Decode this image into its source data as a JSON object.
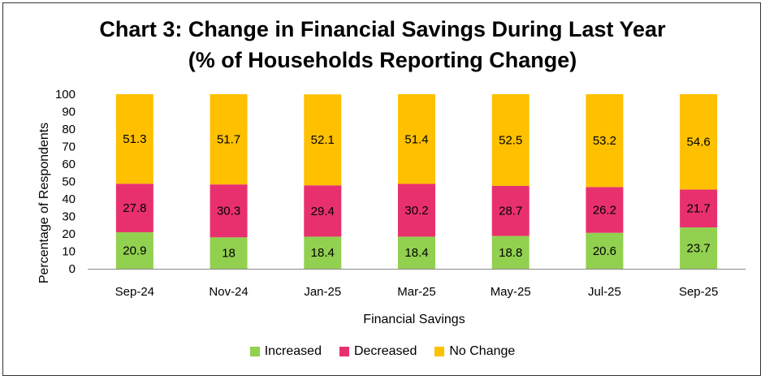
{
  "chart_data": {
    "type": "bar",
    "stacked": true,
    "title_line1": "Chart 3: Change in Financial Savings During Last Year",
    "title_line2": "(% of Households Reporting Change)",
    "xlabel": "Financial Savings",
    "ylabel": "Percentage of Respondents",
    "ylim": [
      0,
      100
    ],
    "yticks": [
      "0",
      "10",
      "20",
      "30",
      "40",
      "50",
      "60",
      "70",
      "80",
      "90",
      "100"
    ],
    "categories": [
      "Sep-24",
      "Nov-24",
      "Jan-25",
      "Mar-25",
      "May-25",
      "Jul-25",
      "Sep-25"
    ],
    "series": [
      {
        "name": "Increased",
        "color": "#92D050",
        "values": [
          20.9,
          18,
          18.4,
          18.4,
          18.8,
          20.6,
          23.7
        ],
        "labels": [
          "20.9",
          "18",
          "18.4",
          "18.4",
          "18.8",
          "20.6",
          "23.7"
        ]
      },
      {
        "name": "Decreased",
        "color": "#E8306F",
        "values": [
          27.8,
          30.3,
          29.4,
          30.2,
          28.7,
          26.2,
          21.7
        ],
        "labels": [
          "27.8",
          "30.3",
          "29.4",
          "30.2",
          "28.7",
          "26.2",
          "21.7"
        ]
      },
      {
        "name": "No Change",
        "color": "#FFC000",
        "values": [
          51.3,
          51.7,
          52.1,
          51.4,
          52.5,
          53.2,
          54.6
        ],
        "labels": [
          "51.3",
          "51.7",
          "52.1",
          "51.4",
          "52.5",
          "53.2",
          "54.6"
        ]
      }
    ],
    "legend": "bottom",
    "grid": false
  }
}
